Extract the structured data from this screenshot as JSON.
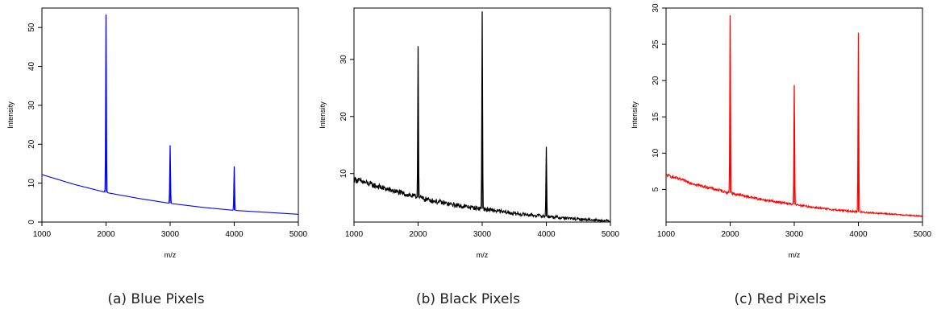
{
  "chart_data": [
    {
      "type": "line",
      "caption": "(a) Blue Pixels",
      "xlabel": "m/z",
      "ylabel": "Intensity",
      "color": "#0000ff",
      "noise": 0.0,
      "xlim": [
        1000,
        5000
      ],
      "ylim": [
        0,
        55
      ],
      "xticks": [
        1000,
        2000,
        3000,
        4000,
        5000
      ],
      "yticks": [
        0,
        10,
        20,
        30,
        40,
        50
      ],
      "baseline": {
        "x": [
          1000,
          1500,
          2000,
          2500,
          3000,
          3500,
          4000,
          4500,
          5000
        ],
        "y": [
          12.2,
          9.7,
          7.6,
          6.1,
          4.8,
          3.8,
          3.0,
          2.5,
          2.0
        ]
      },
      "peaks": [
        {
          "x": 2000,
          "y": 53.3
        },
        {
          "x": 3000,
          "y": 19.7
        },
        {
          "x": 4000,
          "y": 14.3
        }
      ]
    },
    {
      "type": "line",
      "caption": "(b) Black Pixels",
      "xlabel": "m/z",
      "ylabel": "Intensity",
      "color": "#000000",
      "noise": 0.55,
      "xlim": [
        1000,
        5000
      ],
      "ylim": [
        1.5,
        39
      ],
      "xticks": [
        1000,
        2000,
        3000,
        4000,
        5000
      ],
      "yticks": [
        10,
        20,
        30
      ],
      "baseline": {
        "x": [
          1000,
          1500,
          2000,
          2500,
          3000,
          3500,
          4000,
          4500,
          5000
        ],
        "y": [
          9.0,
          7.3,
          5.8,
          4.6,
          3.8,
          3.0,
          2.5,
          2.0,
          1.7
        ]
      },
      "peaks": [
        {
          "x": 2000,
          "y": 32.3
        },
        {
          "x": 3000,
          "y": 38.4
        },
        {
          "x": 4000,
          "y": 14.7
        }
      ]
    },
    {
      "type": "line",
      "caption": "(c) Red Pixels",
      "xlabel": "m/z",
      "ylabel": "Intensity",
      "color": "#ff0000",
      "noise": 0.22,
      "xlim": [
        1000,
        5000
      ],
      "ylim": [
        0.5,
        30
      ],
      "xticks": [
        1000,
        2000,
        3000,
        4000,
        5000
      ],
      "yticks": [
        5,
        10,
        15,
        20,
        25,
        30
      ],
      "baseline": {
        "x": [
          1000,
          1500,
          2000,
          2500,
          3000,
          3500,
          4000,
          4500,
          5000
        ],
        "y": [
          7.0,
          5.6,
          4.5,
          3.6,
          2.9,
          2.3,
          1.9,
          1.6,
          1.3
        ]
      },
      "peaks": [
        {
          "x": 2000,
          "y": 29.0
        },
        {
          "x": 3000,
          "y": 19.4
        },
        {
          "x": 4000,
          "y": 26.6
        }
      ]
    }
  ]
}
